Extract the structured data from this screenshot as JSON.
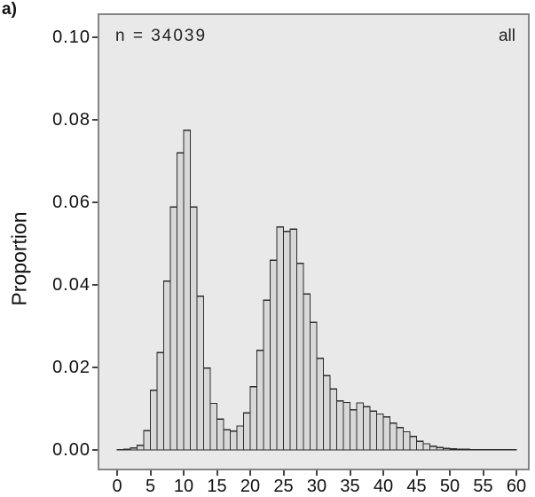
{
  "panel_label": "a)",
  "annotations": {
    "sample_size": "n = 34039",
    "group": "all"
  },
  "y_axis": {
    "label": "Proportion",
    "tick_labels": [
      "0.00",
      "0.02",
      "0.04",
      "0.06",
      "0.08",
      "0.10"
    ],
    "tick_values": [
      0.0,
      0.02,
      0.04,
      0.06,
      0.08,
      0.1
    ]
  },
  "x_axis": {
    "label": "",
    "tick_values": [
      0,
      5,
      10,
      15,
      20,
      25,
      30,
      35,
      40,
      45,
      50,
      55,
      60
    ]
  },
  "colors": {
    "panel_background": "#e9e9e9",
    "panel_border": "#858585",
    "bar_fill": "#d8d8d8",
    "bar_stroke": "#2d2d2d",
    "text": "#1a1a1a"
  },
  "chart_data": {
    "type": "bar",
    "subtype": "histogram",
    "title": "",
    "xlabel": "",
    "ylabel": "Proportion",
    "legend": "none",
    "grid": false,
    "annotations": [
      "n = 34039",
      "all"
    ],
    "xlim": [
      -3,
      62
    ],
    "ylim": [
      0,
      0.1058
    ],
    "x_ticks": [
      0,
      5,
      10,
      15,
      20,
      25,
      30,
      35,
      40,
      45,
      50,
      55,
      60
    ],
    "y_ticks": [
      0.0,
      0.02,
      0.04,
      0.06,
      0.08,
      0.1
    ],
    "bin_start": 0,
    "bin_width": 1,
    "values": [
      0.0001,
      0.0002,
      0.0005,
      0.0011,
      0.0047,
      0.0145,
      0.0236,
      0.0409,
      0.0589,
      0.072,
      0.0775,
      0.0589,
      0.0373,
      0.0198,
      0.0113,
      0.0075,
      0.0049,
      0.0046,
      0.0058,
      0.009,
      0.0153,
      0.0241,
      0.0363,
      0.046,
      0.054,
      0.053,
      0.0535,
      0.0452,
      0.0378,
      0.0309,
      0.0222,
      0.018,
      0.0148,
      0.0119,
      0.0115,
      0.0097,
      0.0114,
      0.0105,
      0.0094,
      0.0087,
      0.008,
      0.0065,
      0.0054,
      0.0044,
      0.0033,
      0.0021,
      0.0015,
      0.0009,
      0.0006,
      0.0004,
      0.0003,
      0.0002,
      0.0002,
      0.0001,
      0.0001,
      0.0001,
      0.0001,
      0.0001,
      0.0001,
      0.0001
    ]
  }
}
